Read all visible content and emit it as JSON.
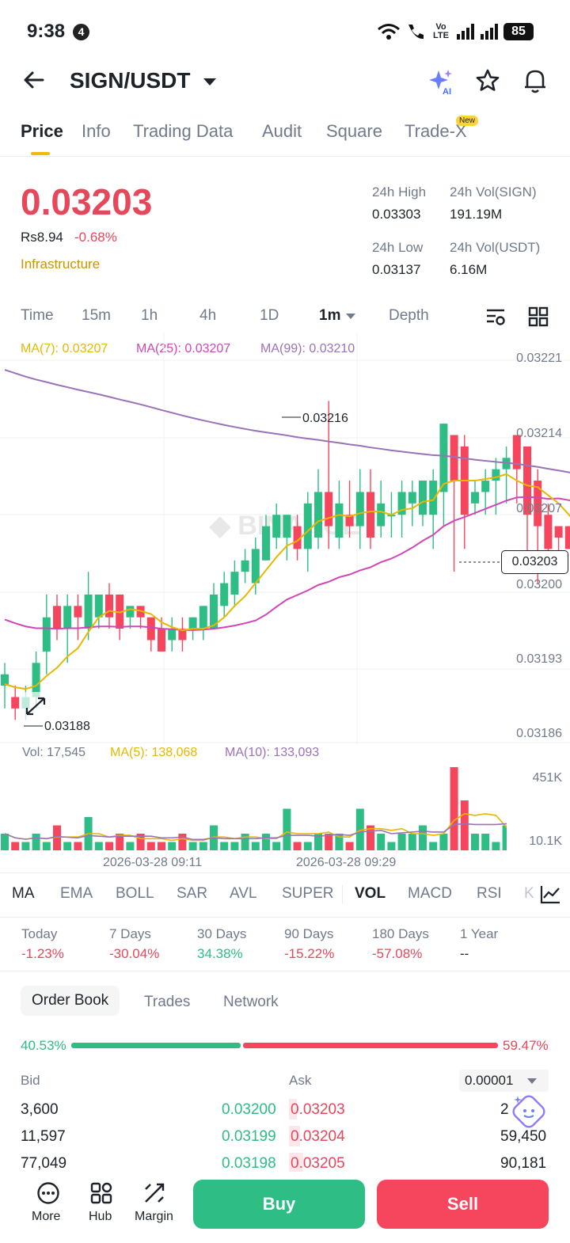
{
  "status": {
    "time": "9:38",
    "notif_count": "4",
    "battery": "85",
    "net_label": "Vo LTE"
  },
  "header": {
    "pair": "SIGN/USDT"
  },
  "tabs": [
    {
      "label": "Price"
    },
    {
      "label": "Info"
    },
    {
      "label": "Trading Data"
    },
    {
      "label": "Audit"
    },
    {
      "label": "Square"
    },
    {
      "label": "Trade-X"
    }
  ],
  "new_badge": "New",
  "ticker": {
    "price": "0.03203",
    "fiat": "Rs8.94",
    "change": "-0.68%",
    "category": "Infrastructure",
    "high_label": "24h High",
    "high": "0.03303",
    "vol_sign_label": "24h Vol(SIGN)",
    "vol_sign": "191.19M",
    "low_label": "24h Low",
    "low": "0.03137",
    "vol_usdt_label": "24h Vol(USDT)",
    "vol_usdt": "6.16M"
  },
  "timeframes": [
    "Time",
    "15m",
    "1h",
    "4h",
    "1D",
    "1m",
    "Depth"
  ],
  "ma": {
    "ma7": "MA(7): 0.03207",
    "ma25": "MA(25): 0.03207",
    "ma99": "MA(99): 0.03210"
  },
  "price_axis": [
    "0.03221",
    "0.03214",
    "0.03207",
    "0.03200",
    "0.03193",
    "0.03186"
  ],
  "current_price_label": "0.03203",
  "chart_marks": {
    "high": "0.03216",
    "low": "0.03188"
  },
  "volume": {
    "vol": "Vol: 17,545",
    "ma5": "MA(5): 138,068",
    "ma10": "MA(10): 133,093",
    "axis_top": "451K",
    "axis_bottom": "10.1K"
  },
  "time_axis": [
    "2026-03-28 09:11",
    "2026-03-28 09:29"
  ],
  "indicators": [
    "MA",
    "EMA",
    "BOLL",
    "SAR",
    "AVL",
    "SUPER",
    "VOL",
    "MACD",
    "RSI",
    "K"
  ],
  "performance": [
    {
      "label": "Today",
      "value": "-1.23%"
    },
    {
      "label": "7 Days",
      "value": "-30.04%"
    },
    {
      "label": "30 Days",
      "value": "34.38%"
    },
    {
      "label": "90 Days",
      "value": "-15.22%"
    },
    {
      "label": "180 Days",
      "value": "-57.08%"
    },
    {
      "label": "1 Year",
      "value": "--"
    }
  ],
  "orderbook": {
    "tabs": [
      "Order Book",
      "Trades",
      "Network"
    ],
    "bid_pct": "40.53%",
    "ask_pct": "59.47%",
    "bid_label": "Bid",
    "ask_label": "Ask",
    "precision": "0.00001",
    "rows": [
      {
        "bid_qty": "3,600",
        "bid_price": "0.03200",
        "ask_price": "0.03203",
        "ask_qty": "2"
      },
      {
        "bid_qty": "11,597",
        "bid_price": "0.03199",
        "ask_price": "0.03204",
        "ask_qty": "59,450"
      },
      {
        "bid_qty": "77,049",
        "bid_price": "0.03198",
        "ask_price": "0.03205",
        "ask_qty": "90,181"
      }
    ]
  },
  "bottom_nav": {
    "more": "More",
    "hub": "Hub",
    "margin": "Margin",
    "buy": "Buy",
    "sell": "Sell"
  },
  "colors": {
    "up": "#2ebd85",
    "down": "#f6465d",
    "accent": "#f0b90b",
    "ma7": "#e6b800",
    "ma25": "#d046b8",
    "ma99": "#9a72b8"
  }
}
